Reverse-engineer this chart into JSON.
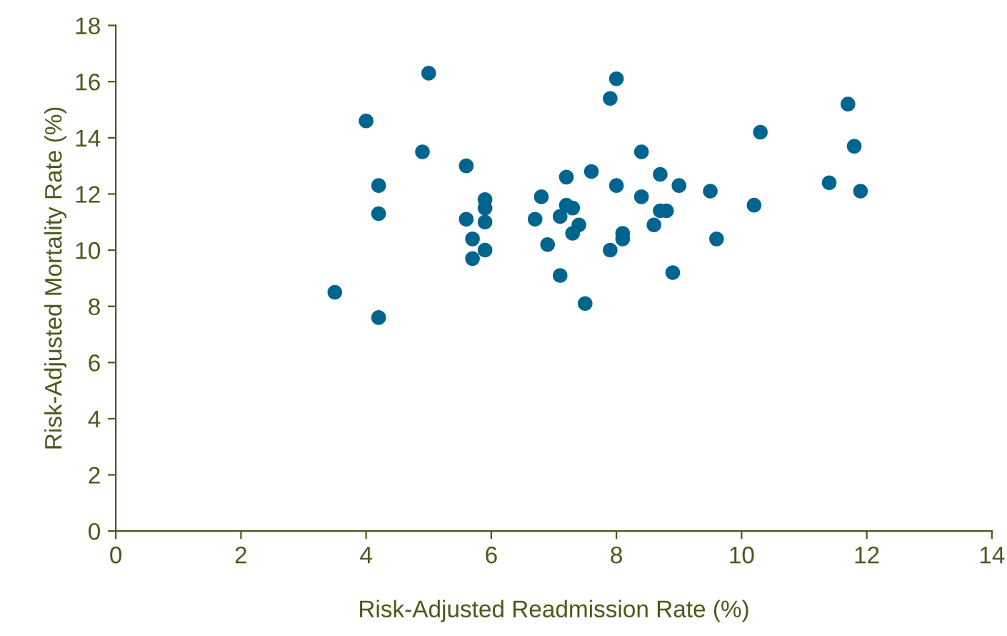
{
  "chart_data": {
    "type": "scatter",
    "xlabel": "Risk-Adjusted Readmission Rate (%)",
    "ylabel": "Risk-Adjusted Mortality Rate (%)",
    "x": [
      3.5,
      4.0,
      4.2,
      4.2,
      4.2,
      4.9,
      5.0,
      5.6,
      5.6,
      5.7,
      5.7,
      5.9,
      5.9,
      5.9,
      5.9,
      6.7,
      6.8,
      6.9,
      7.1,
      7.1,
      7.2,
      7.2,
      7.3,
      7.3,
      7.4,
      7.5,
      7.6,
      7.9,
      7.9,
      8.0,
      8.0,
      8.1,
      8.1,
      8.4,
      8.4,
      8.6,
      8.7,
      8.7,
      8.8,
      8.9,
      9.0,
      9.5,
      9.6,
      10.2,
      10.3,
      11.4,
      11.7,
      11.8,
      11.9
    ],
    "series": [
      {
        "color": "#00658e",
        "values": [
          8.5,
          14.6,
          12.3,
          11.3,
          7.6,
          13.5,
          16.3,
          13.0,
          11.1,
          10.4,
          9.7,
          11.8,
          11.5,
          11.0,
          10.0,
          11.1,
          11.9,
          10.2,
          11.2,
          9.1,
          12.6,
          11.6,
          11.5,
          10.6,
          10.9,
          8.1,
          12.8,
          15.4,
          10.0,
          16.1,
          12.3,
          10.6,
          10.4,
          13.5,
          11.9,
          10.9,
          12.7,
          11.4,
          11.4,
          9.2,
          12.3,
          12.1,
          10.4,
          11.6,
          14.2,
          12.4,
          15.2,
          13.7,
          12.1
        ]
      }
    ],
    "xlim": [
      0,
      14
    ],
    "xticks": [
      0,
      2,
      4,
      6,
      8,
      10,
      12,
      14
    ],
    "ylim": [
      0,
      18
    ],
    "yticks": [
      0,
      2,
      4,
      6,
      8,
      10,
      12,
      14,
      16,
      18
    ],
    "marker": "circle",
    "grid": false,
    "legend": false
  }
}
